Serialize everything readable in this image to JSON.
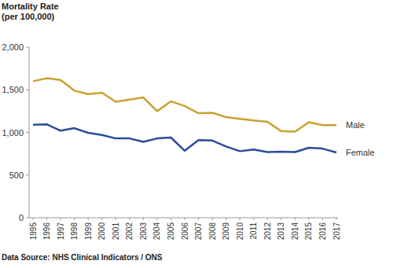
{
  "chart_data": {
    "type": "line",
    "title": "Mortality Rate",
    "subtitle": "(per 100,000)",
    "annotations": [
      "Data Source: NHS Clinical Indicators / ONS"
    ],
    "categories": [
      "1995",
      "1996",
      "1997",
      "1998",
      "1999",
      "2000",
      "2001",
      "2002",
      "2003",
      "2004",
      "2005",
      "2006",
      "2007",
      "2008",
      "2009",
      "2010",
      "2011",
      "2012",
      "2013",
      "2014",
      "2015",
      "2016",
      "2017"
    ],
    "series": [
      {
        "name": "Male",
        "color": "#c9a230",
        "values": [
          1600,
          1635,
          1615,
          1490,
          1450,
          1465,
          1360,
          1385,
          1410,
          1250,
          1365,
          1310,
          1225,
          1230,
          1180,
          1160,
          1140,
          1125,
          1015,
          1010,
          1120,
          1085,
          1085
        ]
      },
      {
        "name": "Female",
        "color": "#2b4c9b",
        "values": [
          1090,
          1095,
          1020,
          1050,
          995,
          970,
          930,
          930,
          890,
          930,
          940,
          785,
          910,
          905,
          835,
          780,
          800,
          770,
          775,
          770,
          820,
          810,
          765
        ]
      }
    ],
    "ylim": [
      0,
      2000
    ],
    "yticks": [
      0,
      500,
      {
        "value": 1000,
        "label": "1,000"
      },
      {
        "value": 1500,
        "label": "1,500"
      },
      {
        "value": 2000,
        "label": "2,000"
      }
    ],
    "grid": false
  }
}
